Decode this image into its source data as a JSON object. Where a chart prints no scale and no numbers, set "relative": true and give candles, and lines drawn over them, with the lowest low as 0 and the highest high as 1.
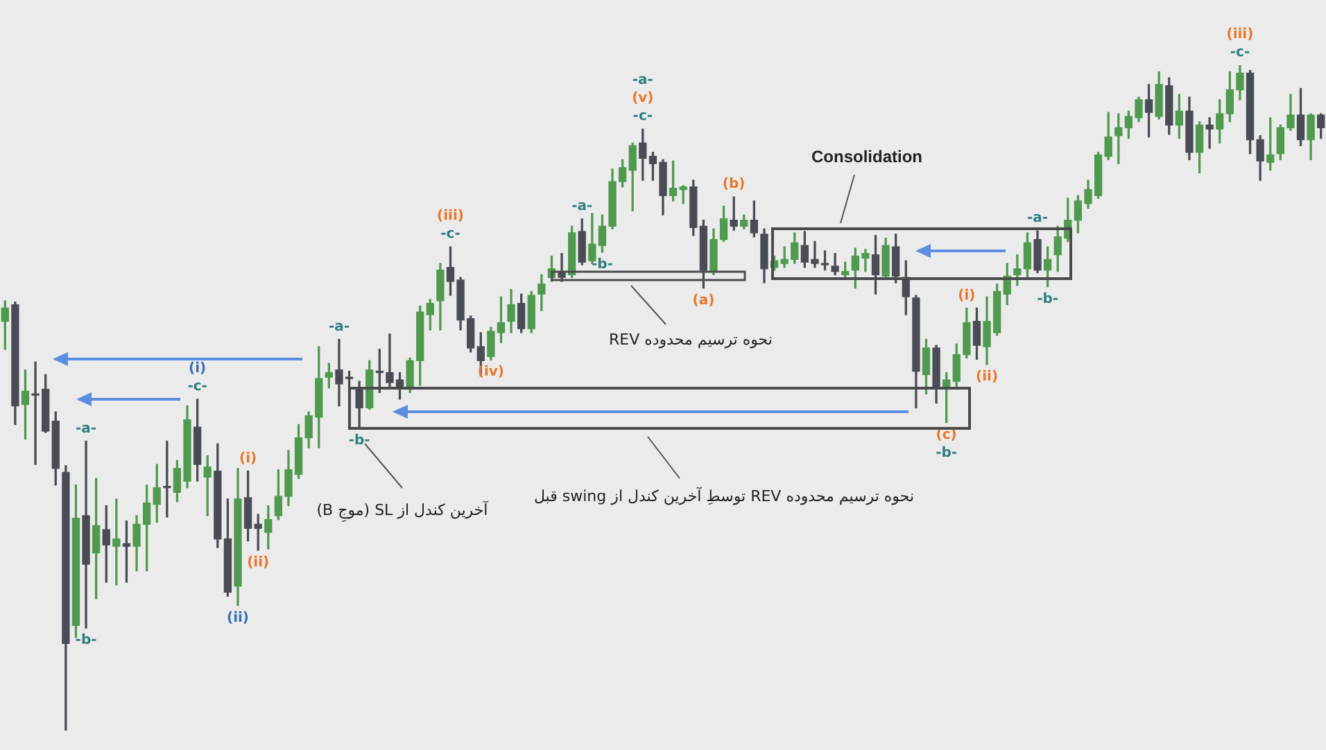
{
  "chart_data": {
    "type": "candlestick",
    "relative": true,
    "tick_labels": false,
    "categories": [
      null,
      null,
      null,
      null,
      null,
      null,
      null,
      null,
      null,
      null,
      null,
      null,
      null,
      null,
      null,
      null,
      null,
      null,
      null,
      null,
      null,
      null,
      null,
      null,
      null,
      null,
      null,
      null,
      null,
      null,
      null,
      null,
      null,
      null,
      null,
      null,
      null,
      null,
      null,
      null,
      null,
      null,
      null,
      null,
      null,
      null,
      null,
      null,
      null,
      null,
      null,
      null,
      null,
      null,
      null,
      null,
      null,
      null,
      null,
      null,
      null,
      null,
      null,
      null,
      null,
      null,
      null,
      null,
      null,
      null,
      null,
      null,
      null,
      null,
      null,
      null,
      null,
      null,
      null,
      null,
      null,
      null,
      null,
      null,
      null,
      null,
      null,
      null,
      null,
      null,
      null,
      null,
      null,
      null,
      null,
      null,
      null,
      null,
      null,
      null,
      null,
      null,
      null,
      null,
      null,
      null,
      null,
      null,
      null,
      null,
      null,
      null,
      null,
      null,
      null,
      null,
      null,
      null,
      null,
      null,
      null,
      null,
      null,
      null,
      null,
      null,
      null,
      null,
      null,
      null,
      null
    ],
    "ohlc": [
      [
        0.615,
        0.646,
        0.573,
        0.635
      ],
      [
        0.64,
        0.644,
        0.46,
        0.488
      ],
      [
        0.49,
        0.542,
        0.438,
        0.51
      ],
      [
        0.506,
        0.554,
        0.4,
        0.504
      ],
      [
        0.513,
        0.535,
        0.448,
        0.45
      ],
      [
        0.465,
        0.479,
        0.369,
        0.394
      ],
      [
        0.388,
        0.398,
        0,
        0.131
      ],
      [
        0.158,
        0.369,
        0.14,
        0.319
      ],
      [
        0.323,
        0.435,
        0.154,
        0.25
      ],
      [
        0.267,
        0.379,
        0.198,
        0.308
      ],
      [
        0.302,
        0.338,
        0.223,
        0.279
      ],
      [
        0.277,
        0.348,
        0.219,
        0.288
      ],
      [
        0.281,
        0.315,
        0.223,
        0.277
      ],
      [
        0.277,
        0.323,
        0.24,
        0.31
      ],
      [
        0.31,
        0.369,
        0.24,
        0.342
      ],
      [
        0.34,
        0.4,
        0.313,
        0.365
      ],
      [
        0.367,
        0.435,
        0.321,
        0.365
      ],
      [
        0.358,
        0.406,
        0.344,
        0.394
      ],
      [
        0.375,
        0.488,
        0.365,
        0.467
      ],
      [
        0.456,
        0.498,
        0.375,
        0.4
      ],
      [
        0.381,
        0.413,
        0.323,
        0.396
      ],
      [
        0.39,
        0.431,
        0.275,
        0.288
      ],
      [
        0.288,
        0.348,
        0.202,
        0.208
      ],
      [
        0.217,
        0.394,
        0.188,
        0.348
      ],
      [
        0.35,
        0.39,
        0.285,
        0.304
      ],
      [
        0.31,
        0.325,
        0.271,
        0.304
      ],
      [
        0.298,
        0.338,
        0.273,
        0.317
      ],
      [
        0.323,
        0.392,
        0.317,
        0.352
      ],
      [
        0.352,
        0.421,
        0.338,
        0.392
      ],
      [
        0.385,
        0.46,
        0.379,
        0.44
      ],
      [
        0.44,
        0.479,
        0.425,
        0.473
      ],
      [
        0.471,
        0.577,
        0.425,
        0.529
      ],
      [
        0.531,
        0.552,
        0.515,
        0.538
      ],
      [
        0.542,
        0.588,
        0.488,
        0.521
      ],
      [
        0.531,
        0.54,
        0.508,
        0.529
      ],
      [
        0.515,
        0.525,
        0.454,
        0.485
      ],
      [
        0.485,
        0.556,
        0.483,
        0.542
      ],
      [
        0.54,
        0.573,
        0.508,
        0.538
      ],
      [
        0.538,
        0.596,
        0.517,
        0.523
      ],
      [
        0.527,
        0.538,
        0.498,
        0.517
      ],
      [
        0.513,
        0.56,
        0.508,
        0.556
      ],
      [
        0.556,
        0.638,
        0.519,
        0.629
      ],
      [
        0.625,
        0.648,
        0.602,
        0.642
      ],
      [
        0.646,
        0.702,
        0.602,
        0.692
      ],
      [
        0.696,
        0.727,
        0.654,
        0.675
      ],
      [
        0.677,
        0.681,
        0.602,
        0.617
      ],
      [
        0.619,
        0.623,
        0.569,
        0.575
      ],
      [
        0.577,
        0.598,
        0.533,
        0.556
      ],
      [
        0.562,
        0.606,
        0.557,
        0.6
      ],
      [
        0.598,
        0.652,
        0.583,
        0.613
      ],
      [
        0.615,
        0.663,
        0.598,
        0.64
      ],
      [
        0.642,
        0.656,
        0.598,
        0.604
      ],
      [
        0.604,
        0.66,
        0.598,
        0.654
      ],
      [
        0.656,
        0.685,
        0.631,
        0.671
      ],
      [
        0.681,
        0.713,
        0.675,
        0.694
      ],
      [
        0.688,
        0.717,
        0.675,
        0.681
      ],
      [
        0.685,
        0.758,
        0.681,
        0.748
      ],
      [
        0.75,
        0.769,
        0.7,
        0.704
      ],
      [
        0.706,
        0.777,
        0.702,
        0.731
      ],
      [
        0.729,
        0.775,
        0.719,
        0.758
      ],
      [
        0.758,
        0.844,
        0.754,
        0.825
      ],
      [
        0.825,
        0.858,
        0.817,
        0.846
      ],
      [
        0.842,
        0.883,
        0.781,
        0.879
      ],
      [
        0.883,
        0.904,
        0.827,
        0.86
      ],
      [
        0.863,
        0.869,
        0.827,
        0.852
      ],
      [
        0.854,
        0.858,
        0.775,
        0.804
      ],
      [
        0.804,
        0.856,
        0.796,
        0.815
      ],
      [
        0.813,
        0.819,
        0.792,
        0.817
      ],
      [
        0.817,
        0.827,
        0.744,
        0.756
      ],
      [
        0.758,
        0.767,
        0.665,
        0.692
      ],
      [
        0.69,
        0.754,
        0.685,
        0.738
      ],
      [
        0.738,
        0.788,
        0.735,
        0.769
      ],
      [
        0.767,
        0.802,
        0.752,
        0.758
      ],
      [
        0.758,
        0.775,
        0.754,
        0.767
      ],
      [
        0.767,
        0.796,
        0.742,
        0.748
      ],
      [
        0.746,
        0.754,
        0.673,
        0.694
      ],
      [
        0.696,
        0.713,
        0.692,
        0.706
      ],
      [
        0.702,
        0.727,
        0.696,
        0.708
      ],
      [
        0.708,
        0.748,
        0.702,
        0.733
      ],
      [
        0.729,
        0.75,
        0.696,
        0.704
      ],
      [
        0.708,
        0.735,
        0.696,
        0.702
      ],
      [
        0.702,
        0.721,
        0.692,
        0.7
      ],
      [
        0.698,
        0.717,
        0.685,
        0.69
      ],
      [
        0.685,
        0.704,
        0.681,
        0.69
      ],
      [
        0.692,
        0.725,
        0.665,
        0.713
      ],
      [
        0.71,
        0.723,
        0.69,
        0.717
      ],
      [
        0.715,
        0.744,
        0.656,
        0.685
      ],
      [
        0.683,
        0.74,
        0.681,
        0.729
      ],
      [
        0.727,
        0.746,
        0.673,
        0.683
      ],
      [
        0.681,
        0.706,
        0.625,
        0.652
      ],
      [
        0.65,
        0.654,
        0.485,
        0.54
      ],
      [
        0.535,
        0.588,
        0.506,
        0.575
      ],
      [
        0.575,
        0.579,
        0.492,
        0.517
      ],
      [
        0.515,
        0.538,
        0.463,
        0.527
      ],
      [
        0.525,
        0.581,
        0.513,
        0.565
      ],
      [
        0.565,
        0.635,
        0.56,
        0.613
      ],
      [
        0.615,
        0.635,
        0.558,
        0.579
      ],
      [
        0.577,
        0.652,
        0.55,
        0.615
      ],
      [
        0.598,
        0.671,
        0.594,
        0.66
      ],
      [
        0.656,
        0.702,
        0.64,
        0.683
      ],
      [
        0.685,
        0.715,
        0.669,
        0.694
      ],
      [
        0.694,
        0.748,
        0.679,
        0.733
      ],
      [
        0.738,
        0.751,
        0.688,
        0.692
      ],
      [
        0.692,
        0.727,
        0.667,
        0.708
      ],
      [
        0.715,
        0.758,
        0.69,
        0.742
      ],
      [
        0.74,
        0.8,
        0.735,
        0.767
      ],
      [
        0.767,
        0.804,
        0.748,
        0.796
      ],
      [
        0.792,
        0.827,
        0.785,
        0.813
      ],
      [
        0.804,
        0.869,
        0.8,
        0.865
      ],
      [
        0.863,
        0.929,
        0.858,
        0.892
      ],
      [
        0.894,
        0.927,
        0.852,
        0.906
      ],
      [
        0.906,
        0.931,
        0.89,
        0.923
      ],
      [
        0.921,
        0.952,
        0.915,
        0.948
      ],
      [
        0.948,
        0.971,
        0.892,
        0.929
      ],
      [
        0.923,
        0.99,
        0.919,
        0.971
      ],
      [
        0.969,
        0.981,
        0.896,
        0.91
      ],
      [
        0.91,
        0.956,
        0.89,
        0.931
      ],
      [
        0.931,
        0.952,
        0.858,
        0.869
      ],
      [
        0.869,
        0.915,
        0.838,
        0.91
      ],
      [
        0.91,
        0.921,
        0.875,
        0.904
      ],
      [
        0.904,
        0.948,
        0.883,
        0.927
      ],
      [
        0.927,
        0.99,
        0.915,
        0.963
      ],
      [
        0.963,
        1,
        0.948,
        0.988
      ],
      [
        0.988,
        0.992,
        0.867,
        0.888
      ],
      [
        0.888,
        0.894,
        0.827,
        0.856
      ],
      [
        0.854,
        0.921,
        0.842,
        0.865
      ],
      [
        0.867,
        0.91,
        0.858,
        0.906
      ],
      [
        0.906,
        0.956,
        0.902,
        0.925
      ],
      [
        0.925,
        0.965,
        0.879,
        0.888
      ],
      [
        0.888,
        0.927,
        0.858,
        0.925
      ],
      [
        0.925,
        0.927,
        0.89,
        0.906
      ]
    ],
    "colors": [
      "#4f9a4f",
      "#4a4c55",
      "#4f9a4f",
      "#4a4c55",
      "#4a4c55",
      "#4a4c55",
      "#4a4c55",
      "#4f9a4f",
      "#4a4c55",
      "#4f9a4f",
      "#4a4c55",
      "#4f9a4f",
      "#4a4c55",
      "#4f9a4f",
      "#4f9a4f",
      "#4f9a4f",
      "#4a4c55",
      "#4f9a4f",
      "#4f9a4f",
      "#4a4c55",
      "#4f9a4f",
      "#4a4c55",
      "#4a4c55",
      "#4f9a4f",
      "#4a4c55",
      "#4a4c55",
      "#4f9a4f",
      "#4f9a4f",
      "#4f9a4f",
      "#4f9a4f",
      "#4f9a4f",
      "#4f9a4f",
      "#4f9a4f",
      "#4a4c55",
      "#4a4c55",
      "#4a4c55",
      "#4f9a4f",
      "#4a4c55",
      "#4a4c55",
      "#4a4c55",
      "#4f9a4f",
      "#4f9a4f",
      "#4f9a4f",
      "#4f9a4f",
      "#4a4c55",
      "#4a4c55",
      "#4a4c55",
      "#4a4c55",
      "#4f9a4f",
      "#4f9a4f",
      "#4f9a4f",
      "#4a4c55",
      "#4f9a4f",
      "#4f9a4f",
      "#4f9a4f",
      "#4a4c55",
      "#4f9a4f",
      "#4a4c55",
      "#4f9a4f",
      "#4f9a4f",
      "#4f9a4f",
      "#4f9a4f",
      "#4f9a4f",
      "#4a4c55",
      "#4a4c55",
      "#4a4c55",
      "#4f9a4f",
      "#4f9a4f",
      "#4a4c55",
      "#4a4c55",
      "#4f9a4f",
      "#4f9a4f",
      "#4a4c55",
      "#4f9a4f",
      "#4a4c55",
      "#4a4c55",
      "#4f9a4f",
      "#4f9a4f",
      "#4f9a4f",
      "#4a4c55",
      "#4a4c55",
      "#4a4c55",
      "#4a4c55",
      "#4f9a4f",
      "#4f9a4f",
      "#4f9a4f",
      "#4a4c55",
      "#4f9a4f",
      "#4a4c55",
      "#4a4c55",
      "#4a4c55",
      "#4f9a4f",
      "#4a4c55",
      "#4f9a4f",
      "#4f9a4f",
      "#4f9a4f",
      "#4a4c55",
      "#4f9a4f",
      "#4f9a4f",
      "#4f9a4f",
      "#4f9a4f",
      "#4f9a4f",
      "#4a4c55",
      "#4f9a4f",
      "#4f9a4f",
      "#4f9a4f",
      "#4f9a4f",
      "#4f9a4f",
      "#4f9a4f",
      "#4f9a4f",
      "#4f9a4f",
      "#4f9a4f",
      "#4f9a4f",
      "#4a4c55",
      "#4f9a4f",
      "#4a4c55",
      "#4f9a4f",
      "#4a4c55",
      "#4f9a4f",
      "#4a4c55",
      "#4f9a4f",
      "#4f9a4f",
      "#4f9a4f",
      "#4a4c55",
      "#4a4c55",
      "#4f9a4f",
      "#4f9a4f",
      "#4f9a4f",
      "#4a4c55",
      "#4f9a4f",
      "#4a4c55"
    ],
    "annotations": [
      "Consolidation",
      "نحوه ترسیم محدوده REV",
      "نحوه ترسیم محدوده REV توسطِ آخرین کندل از swing قبل",
      "آخرین کندل از SL (موجِ B)",
      {
        "text": "-a-",
        "y": 0.435
      },
      {
        "text": "-b-",
        "y": 0.154
      },
      {
        "text": "-c-",
        "y": 0.498
      },
      {
        "text": "(i)",
        "y": 0.498
      },
      {
        "text": "(ii)",
        "y": 0.188
      },
      {
        "text": "(i)",
        "y": 0.39
      },
      {
        "text": "(ii)",
        "y": 0.271
      },
      {
        "text": "-a-",
        "y": 0.588
      },
      {
        "text": "-b-",
        "y": 0.454
      },
      {
        "text": "-c-",
        "y": 0.727
      },
      {
        "text": "(iii)",
        "y": 0.727
      },
      {
        "text": "(iv)",
        "y": 0.557
      },
      {
        "text": "-a-",
        "y": 0.769
      },
      {
        "text": "-b-",
        "y": 0.719
      },
      {
        "text": "-c-",
        "y": 0.904
      },
      {
        "text": "(v)",
        "y": 0.904
      },
      {
        "text": "-a-",
        "y": 0.904
      },
      {
        "text": "(b)",
        "y": 0.802
      },
      {
        "text": "(a)",
        "y": 0.665
      },
      {
        "text": "(c)",
        "y": 0.463
      },
      {
        "text": "-b-",
        "y": 0.463
      },
      {
        "text": "(i)",
        "y": 0.635
      },
      {
        "text": "(ii)",
        "y": 0.55
      },
      {
        "text": "-a-",
        "y": 0.751
      },
      {
        "text": "-b-",
        "y": 0.667
      },
      {
        "text": "-c-",
        "y": 1
      },
      {
        "text": "(iii)",
        "y": 1
      }
    ]
  }
}
